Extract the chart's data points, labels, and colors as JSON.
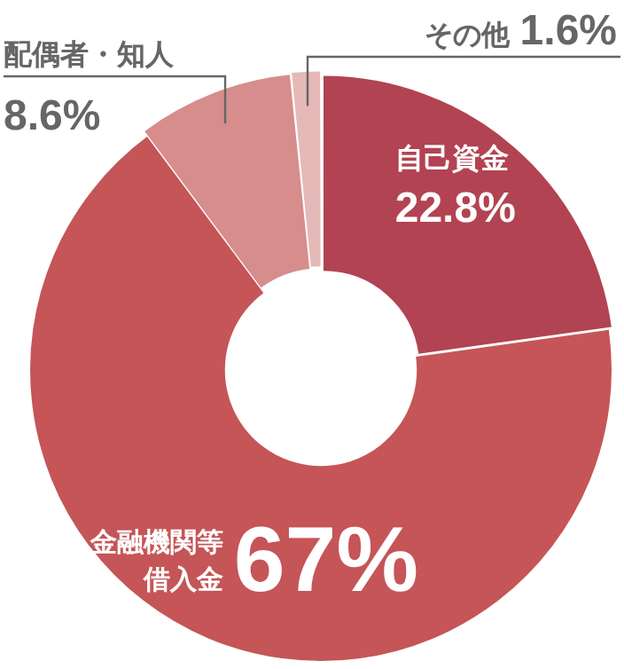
{
  "chart_data": {
    "type": "donut",
    "categories": [
      "自己資金",
      "金融機関等借入金",
      "配偶者・知人",
      "その他"
    ],
    "values": [
      22.8,
      67,
      8.6,
      1.6
    ],
    "colors": [
      "#b24352",
      "#c55557",
      "#d68d8c",
      "#e6b9b9"
    ],
    "value_labels": [
      "22.8%",
      "67%",
      "8.6%",
      "1.6%"
    ],
    "legend": false
  }
}
